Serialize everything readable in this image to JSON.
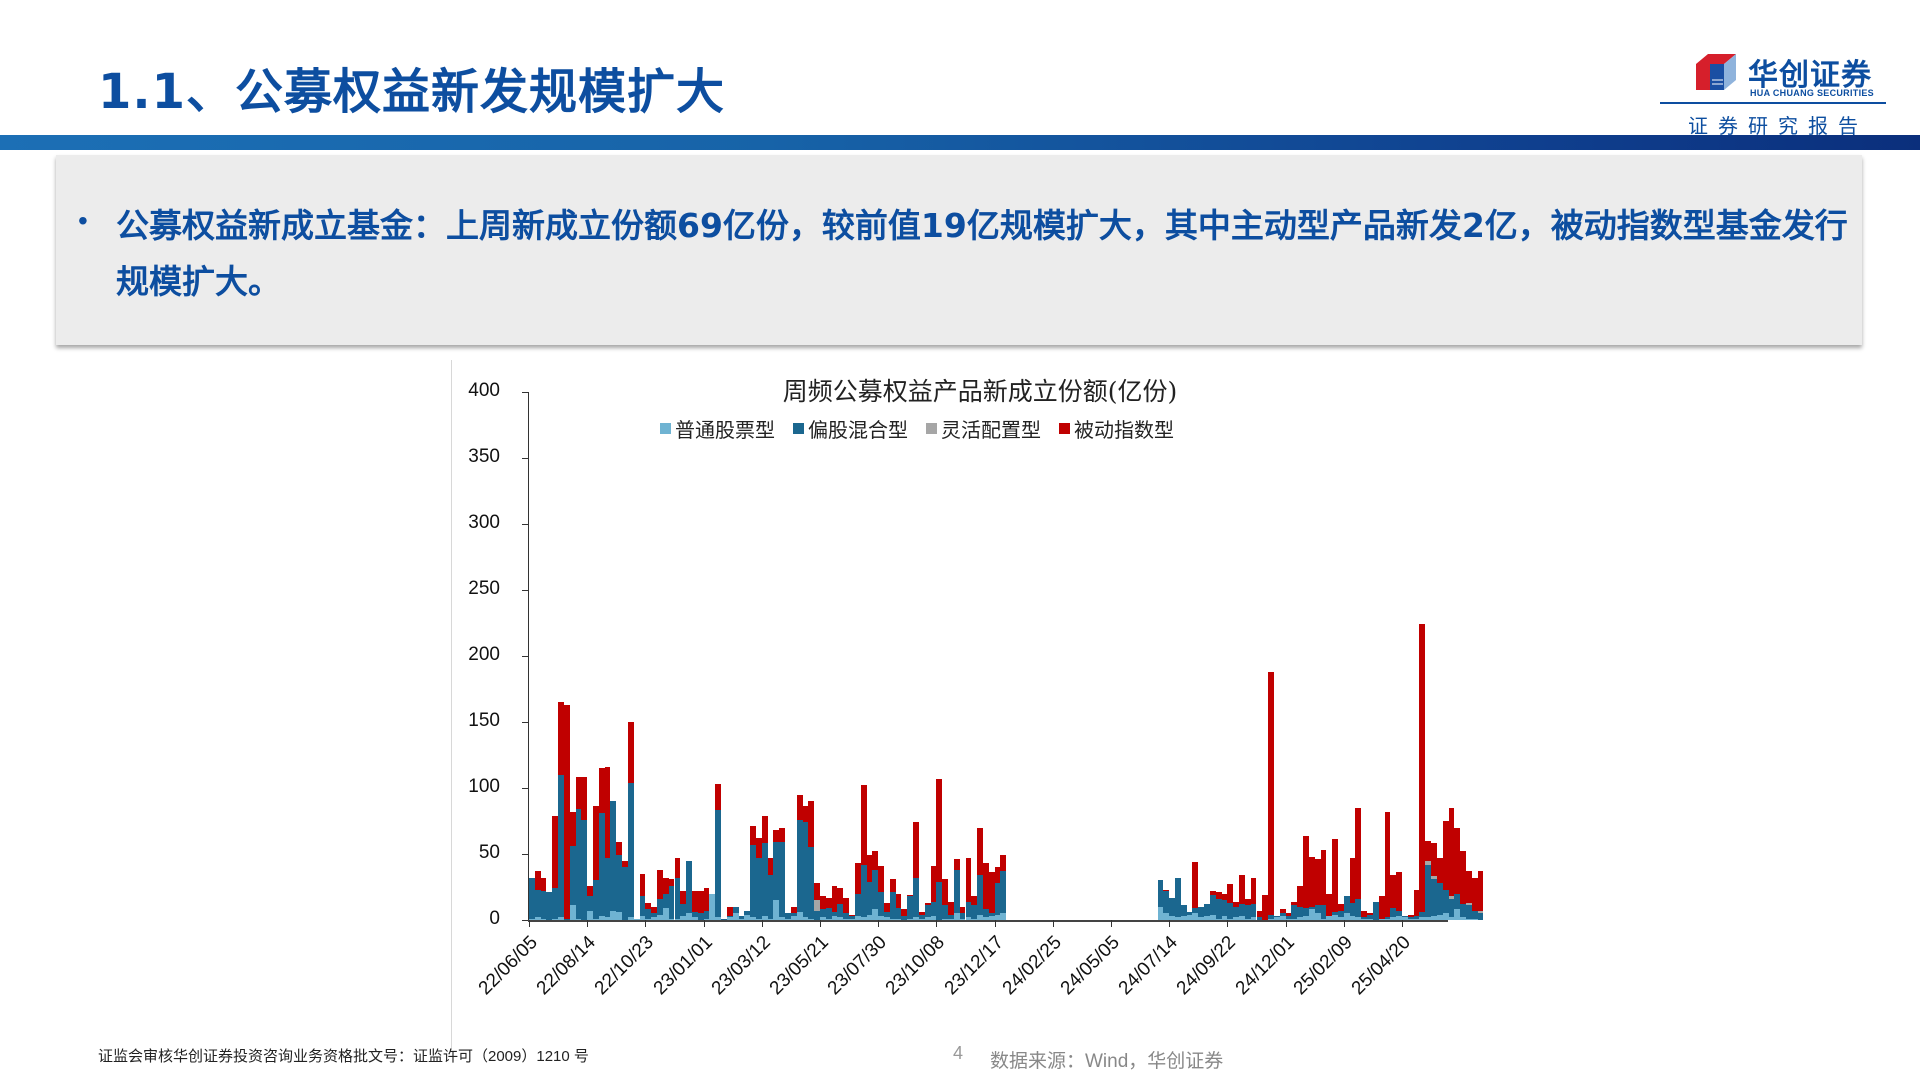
{
  "header": {
    "title": "1.1、公募权益新发规模扩大",
    "logo_cn": "华创证券",
    "logo_en": "HUA CHUANG SECURITIES",
    "logo_sub": "证券研究报告"
  },
  "summary": {
    "bullet": "•",
    "text": "公募权益新成立基金：上周新成立份额69亿份，较前值19亿规模扩大，其中主动型产品新发2亿，被动指数型基金发行规模扩大。"
  },
  "footer": {
    "license": "证监会审核华创证券投资咨询业务资格批文号：证监许可（2009）1210 号",
    "page": "4",
    "source": "数据来源：Wind，华创证券"
  },
  "colors": {
    "brand": "#0d4ea0",
    "series_common_stock": "#6fb3d2",
    "series_hybrid": "#1b678f",
    "series_flexible": "#a6a6a6",
    "series_passive": "#c00000"
  },
  "chart_data": {
    "type": "bar",
    "stacked": true,
    "title": "周频公募权益产品新成立份额(亿份)",
    "xlabel": "",
    "ylabel": "",
    "ylim": [
      0,
      400
    ],
    "yticks": [
      0,
      50,
      100,
      150,
      200,
      250,
      300,
      350,
      400
    ],
    "xtick_labels": [
      "22/06/05",
      "22/08/14",
      "22/10/23",
      "23/01/01",
      "23/03/12",
      "23/05/21",
      "23/07/30",
      "23/10/08",
      "23/12/17",
      "24/02/25",
      "24/05/05",
      "24/07/14",
      "24/09/22",
      "24/12/01",
      "25/02/09",
      "25/04/20"
    ],
    "xtick_every_weeks": 10,
    "grid": false,
    "legend_position": "top",
    "legend": [
      "普通股票型",
      "偏股混合型",
      "灵活配置型",
      "被动指数型"
    ],
    "series": [
      {
        "name": "普通股票型",
        "values": [
          1,
          2,
          1,
          0,
          1,
          2,
          0,
          11,
          1,
          0,
          7,
          1,
          3,
          2,
          7,
          6,
          0,
          2,
          1,
          3,
          1,
          2,
          4,
          9,
          1,
          1,
          3,
          5,
          2,
          0,
          1,
          20,
          2,
          0,
          2,
          5,
          1,
          4,
          2,
          1,
          3,
          1,
          15,
          2,
          1,
          3,
          6,
          2,
          1,
          0,
          2,
          1,
          3,
          2,
          1,
          1,
          3,
          2,
          4,
          8,
          3,
          2,
          1,
          1,
          0,
          1,
          2,
          1,
          2,
          3,
          0,
          1,
          1,
          5,
          1,
          2,
          1,
          4,
          2,
          3,
          4,
          5,
          0,
          0,
          0,
          0,
          0,
          0,
          0,
          0,
          0,
          0,
          0,
          0,
          0,
          0,
          0,
          0,
          0,
          0,
          0,
          0,
          0,
          0,
          0,
          0,
          0,
          0,
          10,
          5,
          3,
          2,
          3,
          4,
          5,
          2,
          3,
          4,
          1,
          3,
          1,
          2,
          3,
          1,
          2,
          0,
          0,
          1,
          2,
          3,
          1,
          1,
          2,
          3,
          8,
          5,
          1,
          3,
          4,
          2,
          5,
          3,
          2,
          1,
          1,
          0,
          1,
          1,
          2,
          3,
          2,
          1,
          1,
          2,
          2,
          3,
          4,
          5,
          2,
          8,
          2,
          1,
          1,
          0
        ]
      },
      {
        "name": "偏股混合型",
        "values": [
          31,
          21,
          21,
          21,
          23,
          108,
          1,
          45,
          83,
          76,
          11,
          29,
          78,
          45,
          83,
          43,
          40,
          102,
          0,
          15,
          7,
          3,
          12,
          11,
          25,
          31,
          9,
          40,
          4,
          5,
          6,
          0,
          81,
          1,
          1,
          5,
          2,
          3,
          55,
          46,
          55,
          33,
          44,
          57,
          4,
          2,
          70,
          72,
          54,
          7,
          6,
          8,
          3,
          10,
          4,
          2,
          17,
          40,
          25,
          30,
          18,
          4,
          20,
          8,
          3,
          17,
          30,
          3,
          9,
          11,
          29,
          10,
          3,
          33,
          4,
          12,
          10,
          30,
          6,
          2,
          24,
          32,
          0,
          0,
          0,
          0,
          0,
          0,
          0,
          0,
          0,
          0,
          0,
          0,
          0,
          0,
          0,
          0,
          0,
          0,
          0,
          0,
          0,
          0,
          0,
          0,
          0,
          0,
          20,
          17,
          14,
          30,
          8,
          2,
          4,
          8,
          9,
          15,
          15,
          12,
          12,
          8,
          9,
          10,
          10,
          2,
          0,
          3,
          1,
          2,
          2,
          10,
          8,
          6,
          2,
          6,
          10,
          0,
          2,
          5,
          13,
          10,
          14,
          1,
          3,
          14,
          0,
          1,
          7,
          4,
          1,
          1,
          2,
          4,
          40,
          28,
          24,
          18,
          14,
          12,
          10,
          10,
          6,
          5,
          4,
          8,
          1,
          1
        ]
      },
      {
        "name": "灵活配置型",
        "values": [
          0,
          0,
          0,
          0,
          0,
          0,
          0,
          0,
          0,
          0,
          0,
          0,
          0,
          0,
          0,
          0,
          0,
          0,
          0,
          0,
          0,
          0,
          0,
          0,
          0,
          0,
          0,
          0,
          0,
          0,
          0,
          0,
          0,
          0,
          0,
          0,
          0,
          0,
          0,
          0,
          0,
          0,
          0,
          0,
          0,
          0,
          0,
          0,
          0,
          8,
          0,
          0,
          0,
          0,
          0,
          0,
          0,
          0,
          0,
          0,
          0,
          0,
          0,
          0,
          0,
          0,
          0,
          0,
          0,
          0,
          0,
          0,
          0,
          0,
          0,
          0,
          0,
          0,
          0,
          0,
          0,
          0,
          0,
          0,
          0,
          0,
          0,
          0,
          0,
          0,
          0,
          0,
          0,
          0,
          0,
          0,
          0,
          0,
          0,
          0,
          0,
          0,
          0,
          0,
          0,
          0,
          0,
          0,
          0,
          0,
          0,
          0,
          0,
          0,
          0,
          0,
          0,
          0,
          0,
          0,
          0,
          0,
          0,
          0,
          0,
          0,
          0,
          0,
          0,
          0,
          0,
          0,
          0,
          0,
          0,
          0,
          0,
          0,
          0,
          0,
          0,
          0,
          0,
          0,
          0,
          0,
          0,
          0,
          0,
          0,
          0,
          0,
          0,
          0,
          3,
          2,
          0,
          0,
          2,
          0,
          0,
          2,
          0,
          2,
          0,
          0
        ]
      },
      {
        "name": "被动指数型",
        "values": [
          0,
          14,
          10,
          0,
          55,
          55,
          162,
          26,
          24,
          32,
          8,
          56,
          34,
          69,
          0,
          10,
          5,
          46,
          0,
          17,
          5,
          5,
          22,
          12,
          5,
          15,
          10,
          0,
          16,
          17,
          17,
          0,
          20,
          0,
          7,
          0,
          0,
          0,
          14,
          15,
          21,
          13,
          9,
          11,
          0,
          5,
          19,
          12,
          35,
          13,
          10,
          8,
          20,
          12,
          12,
          1,
          23,
          60,
          20,
          14,
          20,
          7,
          10,
          11,
          5,
          1,
          42,
          2,
          2,
          27,
          78,
          20,
          10,
          8,
          5,
          33,
          7,
          36,
          35,
          31,
          12,
          12,
          0,
          0,
          0,
          0,
          0,
          0,
          0,
          0,
          0,
          0,
          0,
          0,
          0,
          0,
          0,
          0,
          0,
          0,
          0,
          0,
          0,
          0,
          0,
          0,
          0,
          0,
          0,
          1,
          0,
          0,
          0,
          0,
          35,
          0,
          0,
          3,
          5,
          5,
          14,
          4,
          22,
          5,
          20,
          5,
          19,
          184,
          0,
          3,
          2,
          3,
          16,
          55,
          38,
          35,
          42,
          17,
          55,
          5,
          0,
          34,
          69,
          5,
          1,
          0,
          17,
          80,
          25,
          29,
          0,
          2,
          20,
          218,
          15,
          25,
          19,
          52,
          67,
          50,
          40,
          24,
          25,
          30,
          18,
          17,
          64,
          30,
          8,
          20,
          63
        ]
      }
    ]
  }
}
